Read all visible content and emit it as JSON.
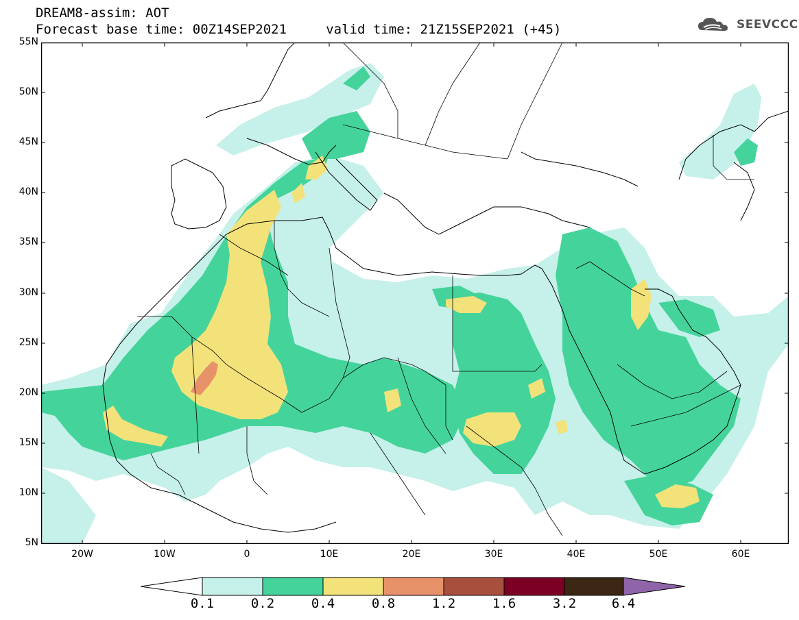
{
  "header": {
    "title": "DREAM8-assim: AOT",
    "subtitle": "Forecast base time: 00Z14SEP2021     valid time: 21Z15SEP2021 (+45)"
  },
  "logo": {
    "text": "SEEVCCC",
    "icon": "cloud-icon"
  },
  "axes": {
    "lat_labels": [
      "55N",
      "50N",
      "45N",
      "40N",
      "35N",
      "30N",
      "25N",
      "20N",
      "15N",
      "10N",
      "5N"
    ],
    "lon_labels": [
      "20W",
      "10W",
      "0",
      "10E",
      "20E",
      "30E",
      "40E",
      "50E",
      "60E"
    ]
  },
  "colorbar": {
    "labels": [
      "0.1",
      "0.2",
      "0.4",
      "0.8",
      "1.2",
      "1.6",
      "3.2",
      "6.4"
    ],
    "colors": [
      "#ffffff",
      "#c6f0ea",
      "#44d49b",
      "#f3e27a",
      "#e8926a",
      "#a94f3e",
      "#7b0024",
      "#3b2713",
      "#8f64a8"
    ]
  },
  "colors": {
    "land_line": "#000000",
    "border_line": "#000000"
  }
}
